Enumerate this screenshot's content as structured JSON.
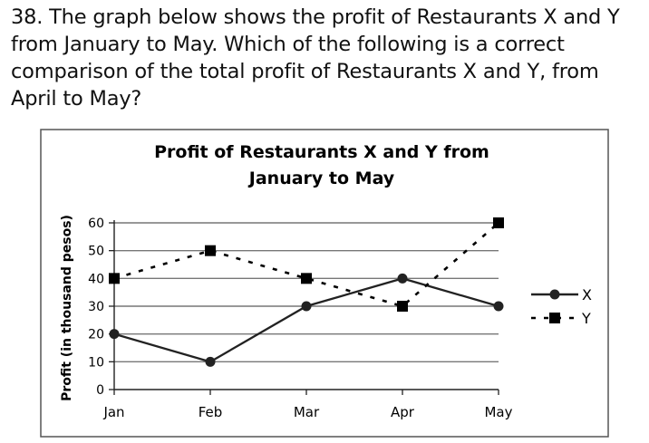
{
  "question": {
    "text": "38. The graph below shows the profit of Restaurants X and Y from January to May.  Which of the following is a correct comparison of the total profit of Restaurants X and Y, from April to May?"
  },
  "chart_data": {
    "type": "line",
    "title_line1": "Profit of Restaurants X and Y from",
    "title_line2": "January to May",
    "ylabel": "Profit (in thousand pesos)",
    "xlabel": "",
    "categories": [
      "Jan",
      "Feb",
      "Mar",
      "Apr",
      "May"
    ],
    "y_ticks": [
      "0",
      "10",
      "20",
      "30",
      "40",
      "50",
      "60"
    ],
    "ylim": [
      0,
      60
    ],
    "grid": true,
    "legend_position": "right",
    "series": [
      {
        "name": "X",
        "values": [
          20,
          10,
          30,
          40,
          30
        ],
        "style": "solid",
        "marker": "circle",
        "color": "#222222"
      },
      {
        "name": "Y",
        "values": [
          40,
          50,
          40,
          30,
          60
        ],
        "style": "dashed",
        "marker": "square",
        "color": "#000000"
      }
    ]
  }
}
